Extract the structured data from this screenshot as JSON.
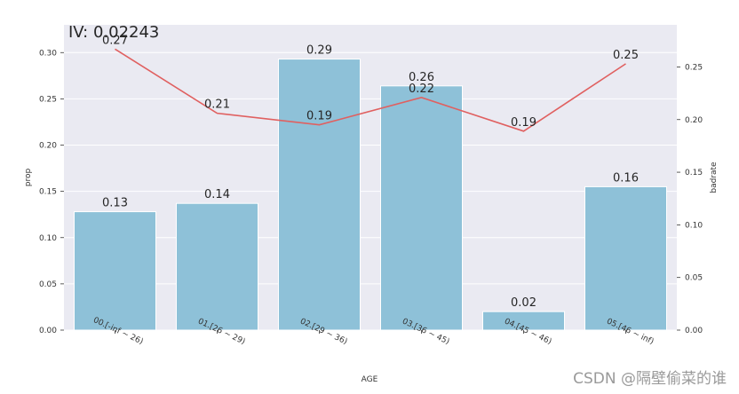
{
  "chart_data": {
    "type": "bar",
    "title": "IV: 0.02243",
    "xlabel": "AGE",
    "ylabel": "prop",
    "y2label": "badrate",
    "categories": [
      "00.[-inf ~ 26)",
      "01.[26 ~ 29)",
      "02.[29 ~ 36)",
      "03.[36 ~ 45)",
      "04.[45 ~ 46)",
      "05.[46 ~ inf)"
    ],
    "series": [
      {
        "values": [
          0.128,
          0.137,
          0.293,
          0.264,
          0.02,
          0.155
        ],
        "labels": [
          "0.13",
          "0.14",
          "0.29",
          "0.26",
          "0.02",
          "0.16"
        ],
        "color": "#8ec1d8",
        "axis": "left",
        "type": "bar"
      },
      {
        "values": [
          0.267,
          0.206,
          0.195,
          0.221,
          0.189,
          0.253
        ],
        "labels": [
          "0.27",
          "0.21",
          "0.19",
          "0.22",
          "0.19",
          "0.25"
        ],
        "color": "#e06060",
        "axis": "right",
        "type": "line"
      }
    ],
    "ylim": [
      0,
      0.33
    ],
    "y2lim": [
      0,
      0.29
    ],
    "yticks": [
      "0.00",
      "0.05",
      "0.10",
      "0.15",
      "0.20",
      "0.25",
      "0.30"
    ],
    "y2ticks": [
      "0.00",
      "0.05",
      "0.10",
      "0.15",
      "0.20",
      "0.25"
    ],
    "grid": true,
    "background": "#eaeaf2"
  },
  "watermark": "CSDN @隔壁偷菜的谁"
}
